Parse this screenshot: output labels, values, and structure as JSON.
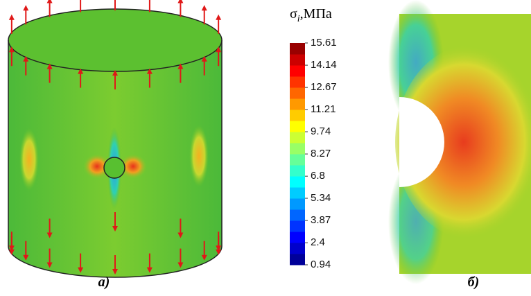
{
  "colorbar": {
    "title": "σ",
    "title_sub": "i",
    "title_unit": ",МПа",
    "lim": [
      0.94,
      15.61
    ],
    "ticks": [
      0.94,
      2.4,
      3.87,
      5.34,
      6.8,
      8.27,
      9.74,
      11.21,
      12.67,
      14.14,
      15.61
    ]
  },
  "panels": [
    {
      "label": "а)"
    },
    {
      "label": "б)"
    }
  ]
}
